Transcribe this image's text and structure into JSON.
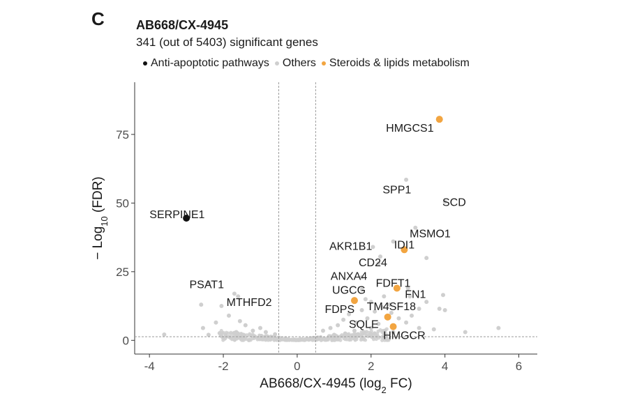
{
  "panel_letter": "C",
  "colors": {
    "anti_apoptotic": "#111111",
    "others": "#cfcfcf",
    "steroids_lipids": "#f2a541",
    "axis": "#333333",
    "reference_line": "#9a9a9a"
  },
  "chart_data": {
    "type": "scatter",
    "title": "AB668/CX-4945",
    "subtitle": "341 (out of 5403) significant genes",
    "xlabel_main": "AB668/CX-4945 (log",
    "xlabel_sub": "2",
    "xlabel_end": " FC)",
    "ylabel_main": "− Log",
    "ylabel_sub": "10",
    "ylabel_end": " (FDR)",
    "xlim": [
      -4.4,
      6.5
    ],
    "ylim": [
      -5,
      94
    ],
    "x_ticks": [
      -4,
      -2,
      0,
      2,
      4,
      6
    ],
    "y_ticks": [
      0,
      25,
      50,
      75
    ],
    "fc_thresholds": [
      -0.5,
      0.5
    ],
    "fdr_threshold": 1.3,
    "grid": false,
    "legend_position": "top",
    "legend": [
      {
        "name": "Anti-apoptotic pathways",
        "color_key": "anti_apoptotic"
      },
      {
        "name": "Others",
        "color_key": "others"
      },
      {
        "name": "Steroids & lipids metabolism",
        "color_key": "steroids_lipids"
      }
    ],
    "highlighted": [
      {
        "gene": "HMGCS1",
        "x": 3.85,
        "y": 80.5,
        "group": "steroids_lipids",
        "lx": 3.05,
        "ly": 77.5
      },
      {
        "gene": "SERPINE1",
        "x": -3.0,
        "y": 44.5,
        "group": "anti_apoptotic",
        "lx": -3.25,
        "ly": 46.0
      },
      {
        "gene": "IDI1",
        "x": 2.9,
        "y": 33.0,
        "group": "steroids_lipids",
        "lx": 2.9,
        "ly": 35.0
      },
      {
        "gene": "FDFT1",
        "x": 2.7,
        "y": 19.0,
        "group": "steroids_lipids",
        "lx": 2.6,
        "ly": 21.0
      },
      {
        "gene": "FDPS",
        "x": 1.55,
        "y": 14.5,
        "group": "steroids_lipids",
        "lx": 1.15,
        "ly": 11.5
      },
      {
        "gene": "SQLE",
        "x": 2.45,
        "y": 8.5,
        "group": "steroids_lipids",
        "lx": 1.8,
        "ly": 6.0
      },
      {
        "gene": "HMGCR",
        "x": 2.6,
        "y": 5.0,
        "group": "steroids_lipids",
        "lx": 2.9,
        "ly": 2.0
      }
    ],
    "labels_others": [
      {
        "gene": "SPP1",
        "x": 2.95,
        "y": 58.5,
        "lx": 2.7,
        "ly": 55.0
      },
      {
        "gene": "SCD",
        "x": 4.0,
        "y": 50.5,
        "lx": 4.25,
        "ly": 50.5
      },
      {
        "gene": "MSMO1",
        "x": 3.2,
        "y": 41.0,
        "lx": 3.6,
        "ly": 39.0
      },
      {
        "gene": "AKR1B1",
        "x": 2.05,
        "y": 34.0,
        "lx": 1.45,
        "ly": 34.5
      },
      {
        "gene": "CD24",
        "x": 2.2,
        "y": 28.0,
        "lx": 2.05,
        "ly": 28.5
      },
      {
        "gene": "ANXA4",
        "x": 1.75,
        "y": 23.0,
        "lx": 1.4,
        "ly": 23.5
      },
      {
        "gene": "UGCG",
        "x": 1.75,
        "y": 18.5,
        "lx": 1.4,
        "ly": 18.5
      },
      {
        "gene": "FN1",
        "x": 3.0,
        "y": 19.0,
        "lx": 3.2,
        "ly": 17.0
      },
      {
        "gene": "TM4SF18",
        "x": 2.5,
        "y": 13.0,
        "lx": 2.55,
        "ly": 12.5
      },
      {
        "gene": "PSAT1",
        "x": -2.4,
        "y": 21.0,
        "lx": -2.45,
        "ly": 20.5
      },
      {
        "gene": "MTHFD2",
        "x": -1.6,
        "y": 16.0,
        "lx": -1.3,
        "ly": 14.0
      }
    ],
    "others_points": [
      {
        "x": -3.6,
        "y": 2.1
      },
      {
        "x": -2.55,
        "y": 4.5
      },
      {
        "x": -2.4,
        "y": 2.0
      },
      {
        "x": -2.1,
        "y": 2.6
      },
      {
        "x": -2.6,
        "y": 13.0
      },
      {
        "x": -2.05,
        "y": 12.5
      },
      {
        "x": -1.85,
        "y": 9.0
      },
      {
        "x": -1.55,
        "y": 7.0
      },
      {
        "x": -1.7,
        "y": 17.0
      },
      {
        "x": -1.4,
        "y": 5.5
      },
      {
        "x": -1.2,
        "y": 3.5
      },
      {
        "x": -1.0,
        "y": 4.5
      },
      {
        "x": -0.85,
        "y": 3.0
      },
      {
        "x": -0.6,
        "y": 2.2
      },
      {
        "x": -2.2,
        "y": 6.5
      },
      {
        "x": -1.65,
        "y": 3.0
      },
      {
        "x": 0.7,
        "y": 3.5
      },
      {
        "x": 0.9,
        "y": 4.5
      },
      {
        "x": 1.1,
        "y": 5.5
      },
      {
        "x": 1.25,
        "y": 7.5
      },
      {
        "x": 1.4,
        "y": 9.5
      },
      {
        "x": 1.6,
        "y": 6.5
      },
      {
        "x": 1.75,
        "y": 11.0
      },
      {
        "x": 1.9,
        "y": 8.0
      },
      {
        "x": 2.0,
        "y": 14.0
      },
      {
        "x": 2.1,
        "y": 10.5
      },
      {
        "x": 2.3,
        "y": 12.0
      },
      {
        "x": 2.35,
        "y": 16.0
      },
      {
        "x": 2.55,
        "y": 10.0
      },
      {
        "x": 2.75,
        "y": 8.0
      },
      {
        "x": 2.95,
        "y": 6.5
      },
      {
        "x": 3.1,
        "y": 9.0
      },
      {
        "x": 3.3,
        "y": 11.5
      },
      {
        "x": 3.5,
        "y": 14.0
      },
      {
        "x": 3.85,
        "y": 11.5
      },
      {
        "x": 4.0,
        "y": 11.0
      },
      {
        "x": 3.3,
        "y": 4.5
      },
      {
        "x": 3.7,
        "y": 4.0
      },
      {
        "x": 4.55,
        "y": 3.0
      },
      {
        "x": 5.45,
        "y": 4.5
      },
      {
        "x": 3.5,
        "y": 30.0
      },
      {
        "x": 2.25,
        "y": 30.5
      },
      {
        "x": 2.6,
        "y": 36.0
      },
      {
        "x": 3.05,
        "y": 16.0
      },
      {
        "x": 1.3,
        "y": 2.5
      },
      {
        "x": 1.0,
        "y": 2.0
      },
      {
        "x": 2.6,
        "y": 3.0
      },
      {
        "x": 2.0,
        "y": 4.5
      },
      {
        "x": 1.55,
        "y": 3.5
      },
      {
        "x": 2.2,
        "y": 6.0
      },
      {
        "x": 1.85,
        "y": 15.0
      },
      {
        "x": 3.95,
        "y": 16.5
      }
    ]
  }
}
